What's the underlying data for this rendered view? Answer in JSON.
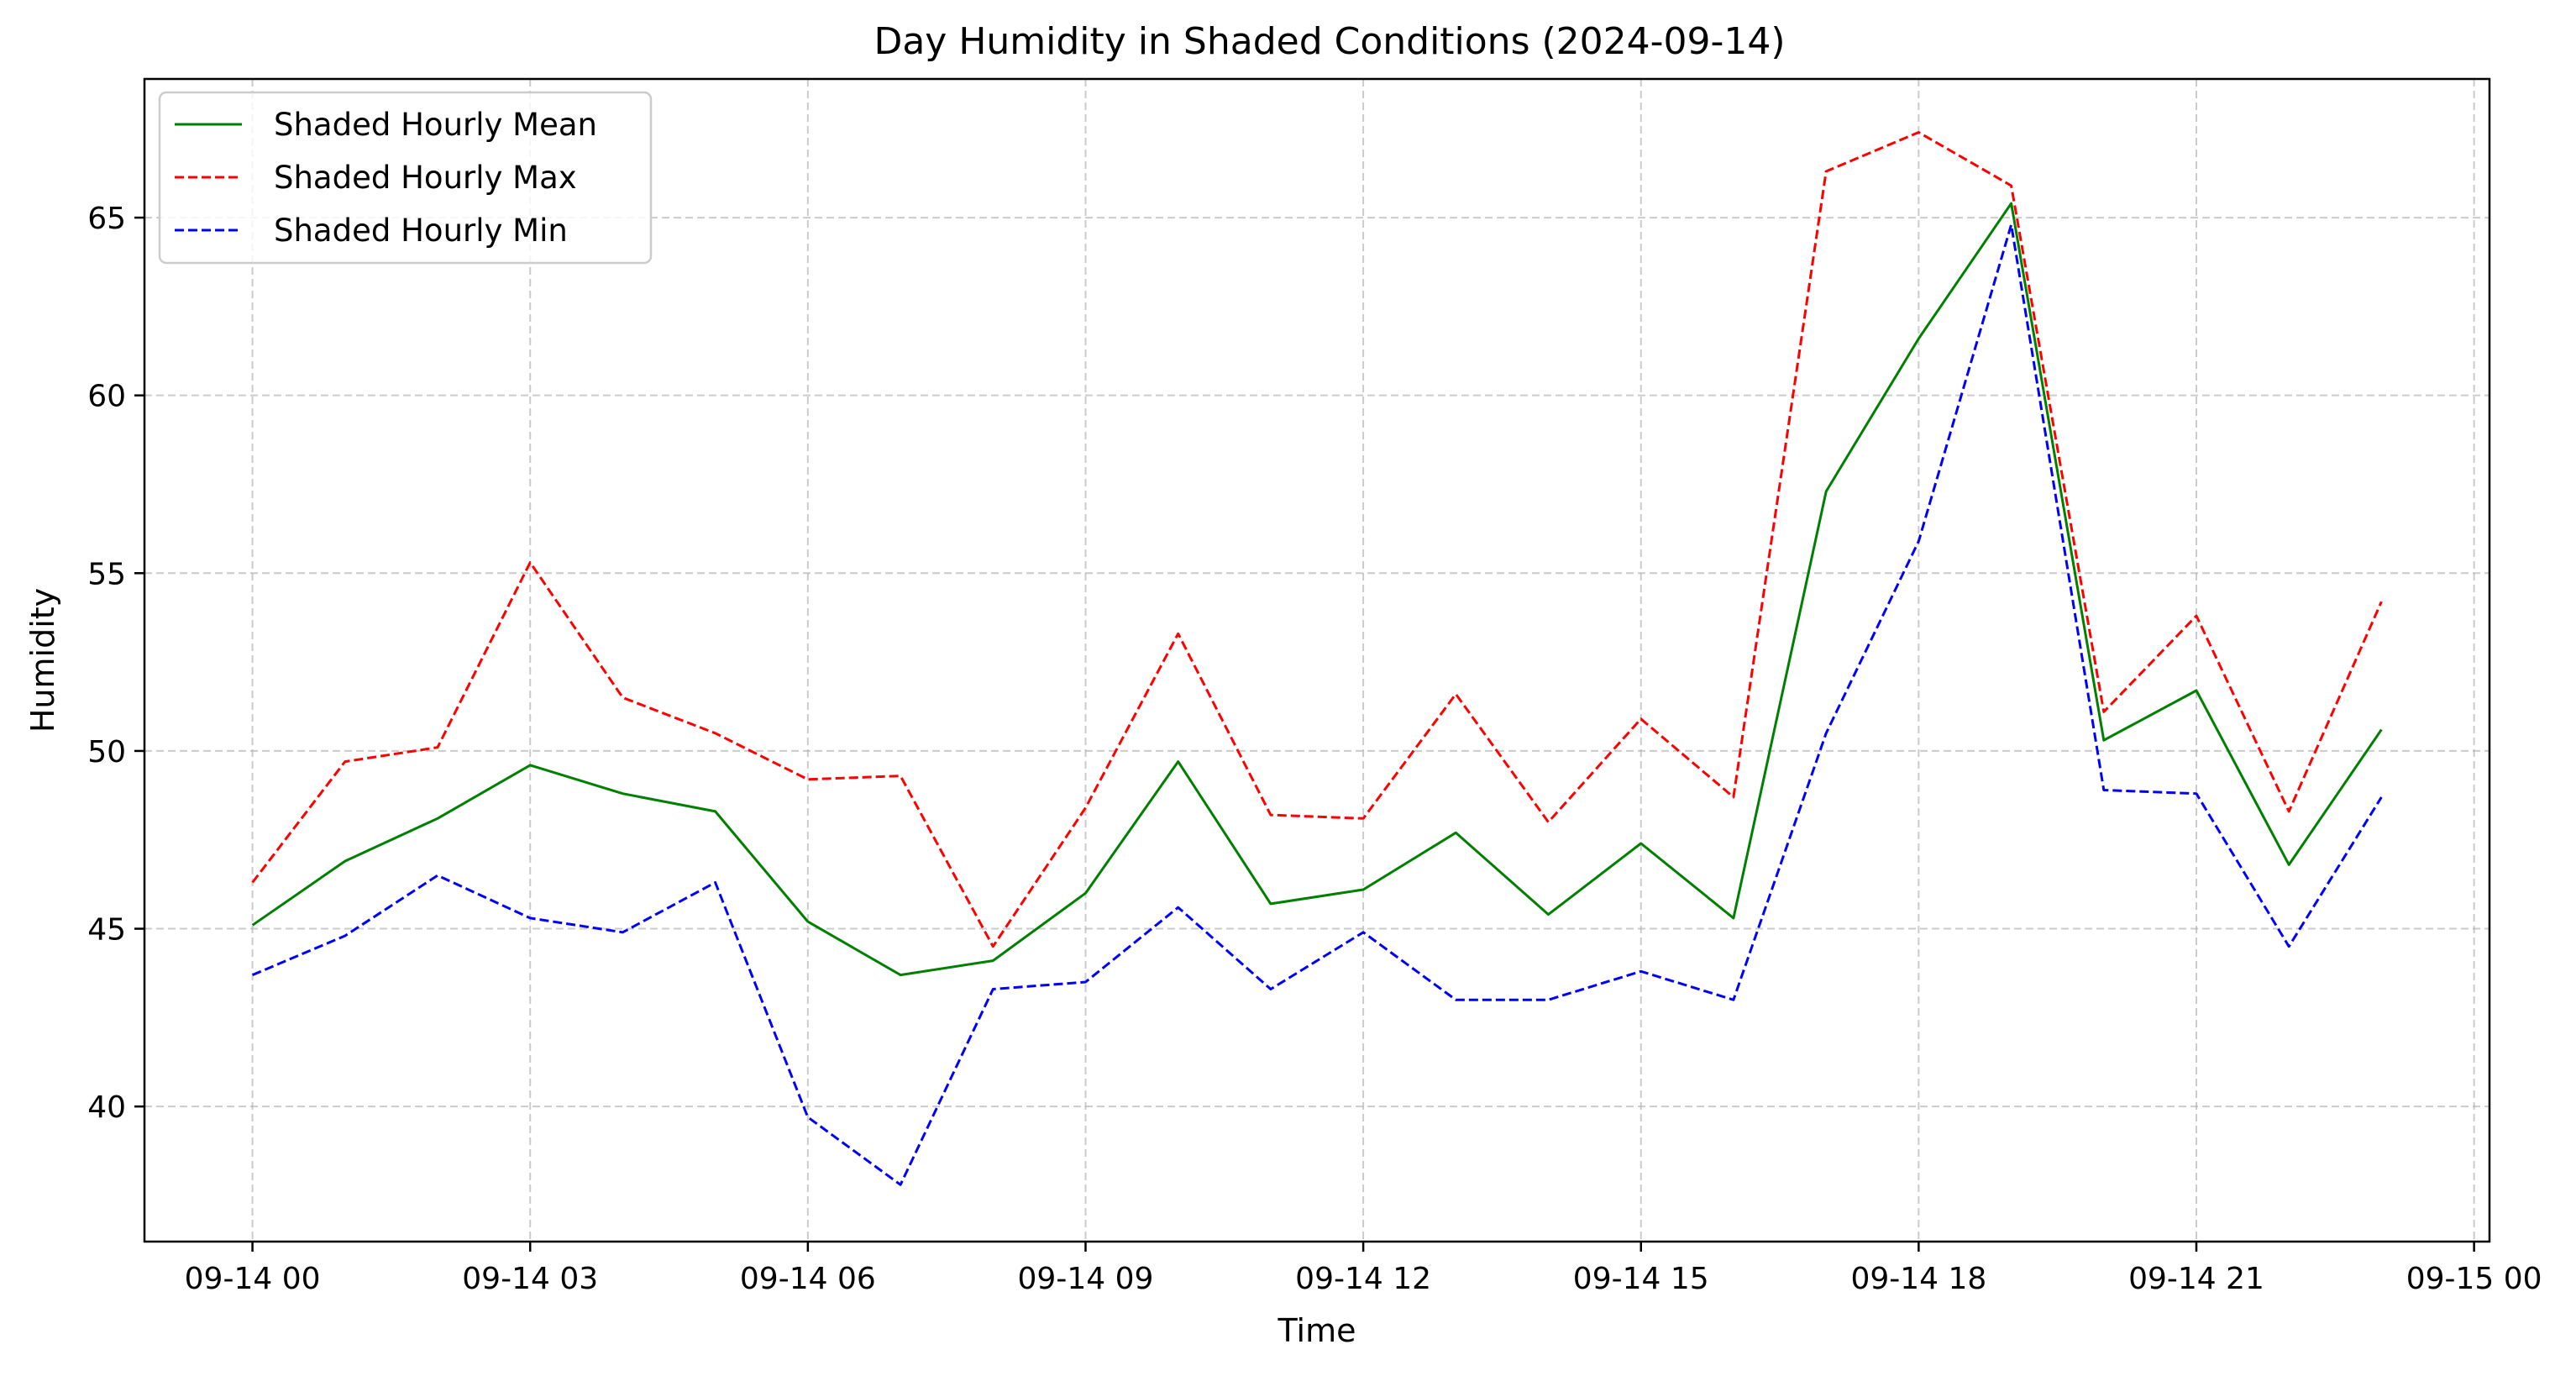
{
  "chart_data": {
    "type": "line",
    "title": "Day Humidity in Shaded Conditions (2024-09-14)",
    "xlabel": "Time",
    "ylabel": "Humidity",
    "x": [
      "2024-09-14 00:00",
      "2024-09-14 01:00",
      "2024-09-14 02:00",
      "2024-09-14 03:00",
      "2024-09-14 04:00",
      "2024-09-14 05:00",
      "2024-09-14 06:00",
      "2024-09-14 07:00",
      "2024-09-14 08:00",
      "2024-09-14 09:00",
      "2024-09-14 10:00",
      "2024-09-14 11:00",
      "2024-09-14 12:00",
      "2024-09-14 13:00",
      "2024-09-14 14:00",
      "2024-09-14 15:00",
      "2024-09-14 16:00",
      "2024-09-14 17:00",
      "2024-09-14 18:00",
      "2024-09-14 19:00",
      "2024-09-14 20:00",
      "2024-09-14 21:00",
      "2024-09-14 22:00",
      "2024-09-14 23:00"
    ],
    "xlim": [
      "2024-09-13 22:50",
      "2024-09-15 00:10"
    ],
    "ylim": [
      36.2,
      68.9
    ],
    "xticks": [
      {
        "value": "2024-09-14 00:00",
        "label": "09-14 00"
      },
      {
        "value": "2024-09-14 03:00",
        "label": "09-14 03"
      },
      {
        "value": "2024-09-14 06:00",
        "label": "09-14 06"
      },
      {
        "value": "2024-09-14 09:00",
        "label": "09-14 09"
      },
      {
        "value": "2024-09-14 12:00",
        "label": "09-14 12"
      },
      {
        "value": "2024-09-14 15:00",
        "label": "09-14 15"
      },
      {
        "value": "2024-09-14 18:00",
        "label": "09-14 18"
      },
      {
        "value": "2024-09-14 21:00",
        "label": "09-14 21"
      },
      {
        "value": "2024-09-15 00:00",
        "label": "09-15 00"
      }
    ],
    "yticks": [
      40,
      45,
      50,
      55,
      60,
      65
    ],
    "grid": true,
    "legend_position": "top-left",
    "series": [
      {
        "name": "Shaded Hourly Mean",
        "color": "#008000",
        "style": "solid",
        "values": [
          45.1,
          46.9,
          48.1,
          49.6,
          48.8,
          48.3,
          45.2,
          43.7,
          44.1,
          46.0,
          49.7,
          45.7,
          46.1,
          47.7,
          45.4,
          47.4,
          45.3,
          57.3,
          61.6,
          65.4,
          50.3,
          51.7,
          46.8,
          50.6
        ]
      },
      {
        "name": "Shaded Hourly Max",
        "color": "#ff0000",
        "style": "dashed",
        "values": [
          46.3,
          49.7,
          50.1,
          55.3,
          51.5,
          50.5,
          49.2,
          49.3,
          44.5,
          48.4,
          53.3,
          48.2,
          48.1,
          51.6,
          48.0,
          50.9,
          48.7,
          66.3,
          67.4,
          65.9,
          51.1,
          53.8,
          48.3,
          54.2
        ]
      },
      {
        "name": "Shaded Hourly Min",
        "color": "#0000ff",
        "style": "dashed",
        "values": [
          43.7,
          44.8,
          46.5,
          45.3,
          44.9,
          46.3,
          39.7,
          37.8,
          43.3,
          43.5,
          45.6,
          43.3,
          44.9,
          43.0,
          43.0,
          43.8,
          43.0,
          50.5,
          55.9,
          64.8,
          48.9,
          48.8,
          44.5,
          48.7
        ]
      }
    ]
  }
}
